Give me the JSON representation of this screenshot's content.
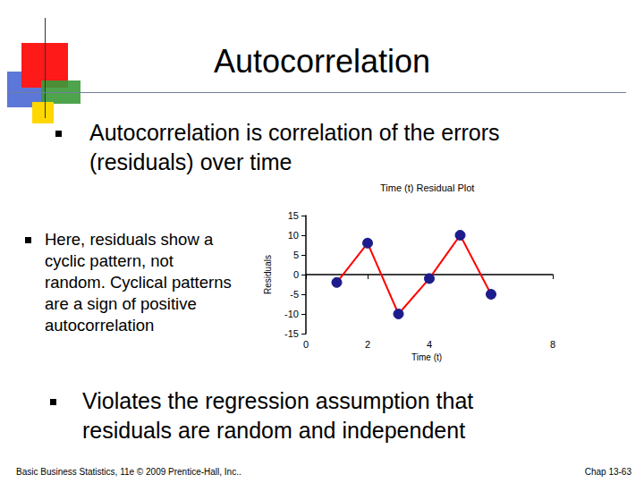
{
  "slide": {
    "title": "Autocorrelation",
    "bullets": [
      "Autocorrelation is correlation of the errors (residuals) over time",
      "Here, residuals show a cyclic pattern, not random.  Cyclical patterns are a sign of positive autocorrelation",
      "Violates the regression assumption that residuals are random and independent"
    ],
    "footer_left": "Basic Business Statistics, 11e © 2009 Prentice-Hall, Inc..",
    "footer_right": "Chap 13-63"
  },
  "chart_data": {
    "type": "line",
    "title": "Time (t) Residual Plot",
    "x_label": "Time (t)",
    "y_label": "Residuals",
    "x": [
      1,
      2,
      3,
      4,
      5,
      6
    ],
    "values": [
      -2,
      8,
      -10,
      -1,
      10,
      -5
    ],
    "color": "#ff0000",
    "marker": "circle",
    "xlim": [
      0,
      8
    ],
    "xticks": [
      0,
      2,
      4,
      8
    ],
    "ylim": [
      -15,
      15
    ],
    "yticks": [
      -15,
      -10,
      -5,
      0,
      5,
      10,
      15
    ],
    "grid": false
  }
}
